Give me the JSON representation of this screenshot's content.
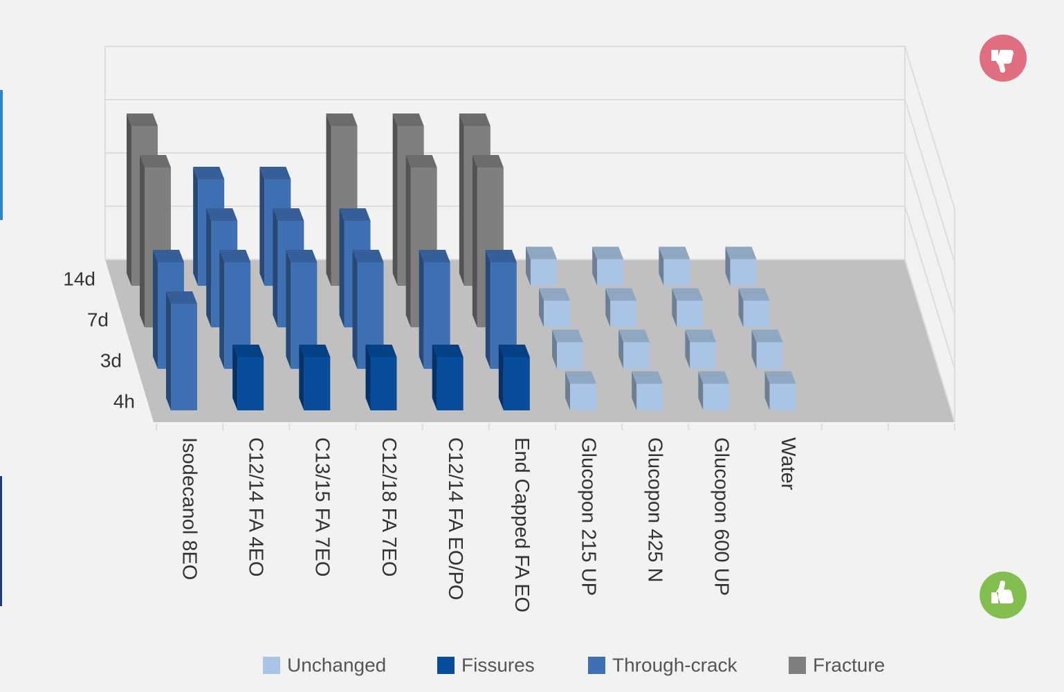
{
  "chart_data": {
    "type": "bar3d",
    "categories": [
      "Isodecanol 8EO",
      "C12/14 FA 4EO",
      "C13/15 FA 7EO",
      "C12/18 FA 7EO",
      "C12/14 FA EO/PO",
      "End Capped FA EO",
      "Glucopon 215 UP",
      "Glucopon 425 N",
      "Glucopon 600 UP",
      "Water",
      null,
      null
    ],
    "series": [
      {
        "name": "14d",
        "values": [
          3,
          2,
          2,
          3,
          3,
          3,
          0.5,
          0.5,
          0.5,
          0.5,
          null,
          null
        ]
      },
      {
        "name": "7d",
        "values": [
          3,
          2,
          2,
          2,
          3,
          3,
          0.5,
          0.5,
          0.5,
          0.5,
          null,
          null
        ]
      },
      {
        "name": "3d",
        "values": [
          2,
          2,
          2,
          2,
          2,
          2,
          0.5,
          0.5,
          0.5,
          0.5,
          null,
          null
        ]
      },
      {
        "name": "4h",
        "values": [
          2,
          1,
          1,
          1,
          1,
          1,
          0.5,
          0.5,
          0.5,
          0.5,
          null,
          null
        ]
      }
    ],
    "legend": [
      {
        "name": "Unchanged",
        "color": "#a9c4e4",
        "value": 0.5
      },
      {
        "name": "Fissures",
        "color": "#084c9c",
        "value": 1
      },
      {
        "name": "Through-crack",
        "color": "#3f70b4",
        "value": 2
      },
      {
        "name": "Fracture",
        "color": "#7f7f7f",
        "value": 3
      }
    ],
    "ylim": [
      0,
      4
    ],
    "yticks": [
      0,
      1,
      2,
      3,
      4
    ],
    "grid": true
  }
}
